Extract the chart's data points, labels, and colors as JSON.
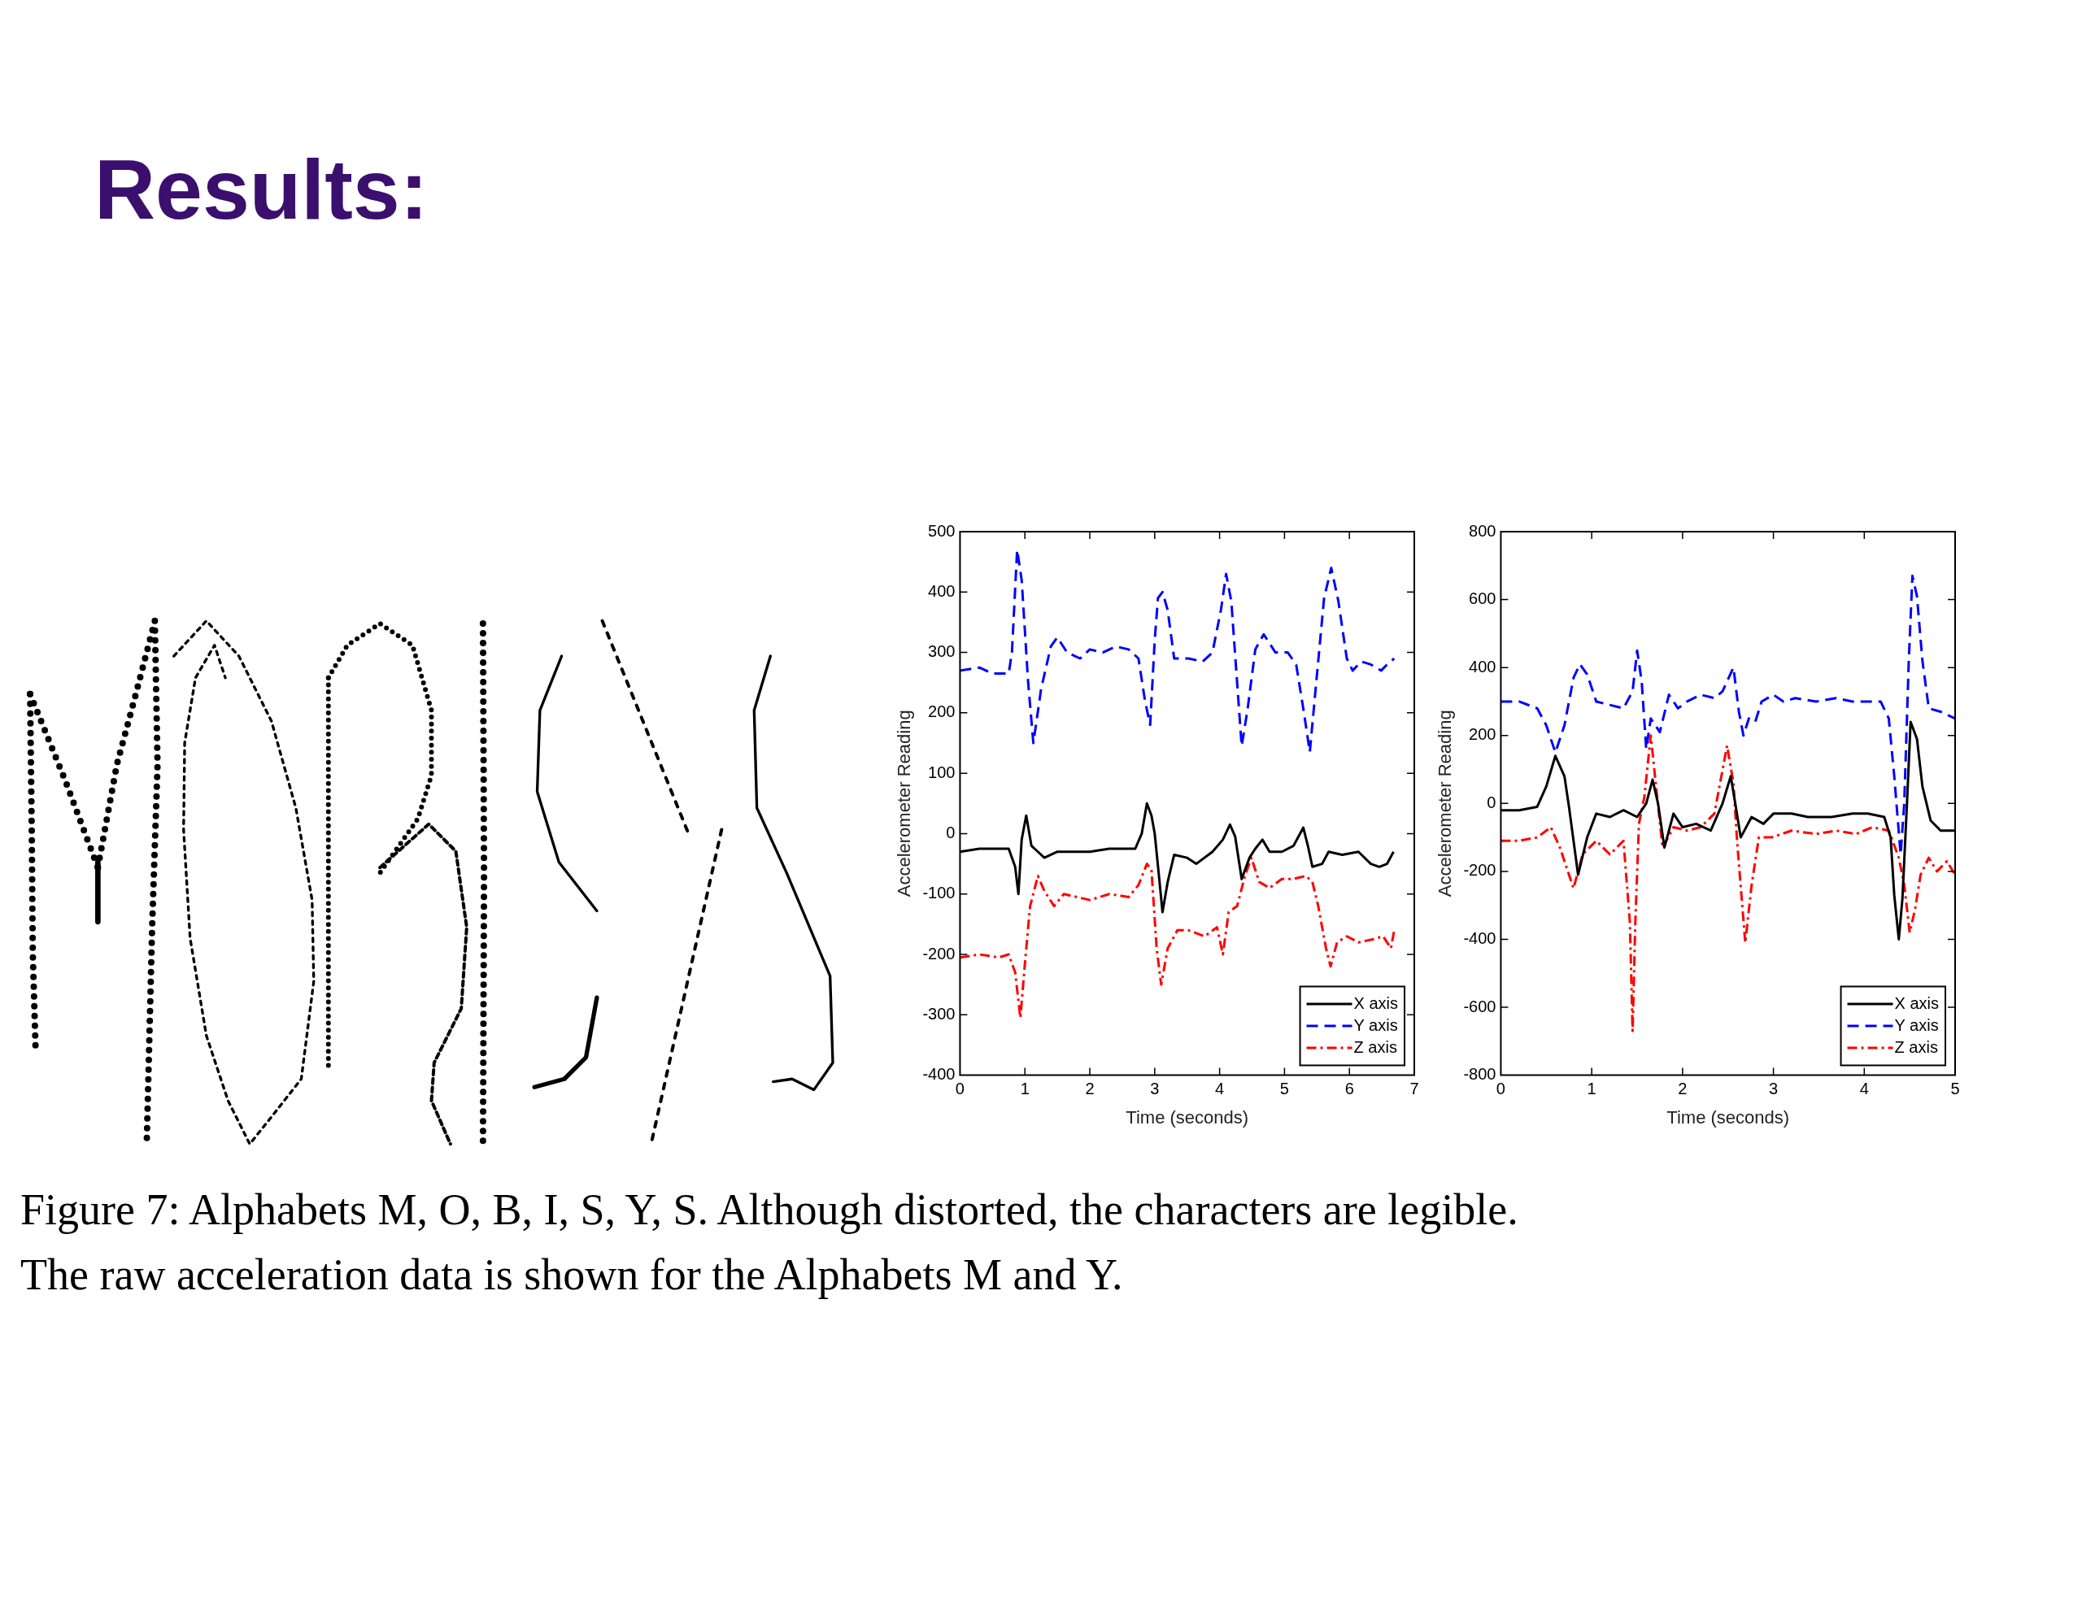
{
  "chart_data": [
    {
      "type": "other",
      "title": "Results:",
      "annotations": [
        "Figure 7: Alphabets M, O, B, I, S, Y, S. Although distorted, the characters are legible.",
        "The raw acceleration data is shown for the Alphabets M and Y."
      ]
    },
    {
      "type": "line",
      "xlabel": "Time (seconds)",
      "ylabel": "Accelerometer Reading",
      "xlim": [
        0,
        7
      ],
      "xticks": [
        0,
        1,
        2,
        3,
        4,
        5,
        6,
        7
      ],
      "ylim": [
        -400,
        500
      ],
      "yticks": [
        -400,
        -300,
        -200,
        -100,
        0,
        100,
        200,
        300,
        400,
        500
      ],
      "legend": "bottom right",
      "series": [
        {
          "name": "X axis",
          "color": "#000000",
          "line_style": "solid",
          "x": [
            0,
            0.3,
            0.5,
            0.75,
            0.85,
            0.9,
            0.95,
            1.02,
            1.1,
            1.2,
            1.3,
            1.5,
            1.7,
            2.0,
            2.3,
            2.5,
            2.7,
            2.8,
            2.88,
            2.95,
            3.0,
            3.07,
            3.12,
            3.2,
            3.3,
            3.5,
            3.64,
            3.89,
            4.05,
            4.16,
            4.24,
            4.34,
            4.46,
            4.55,
            4.66,
            4.77,
            4.96,
            5.14,
            5.29,
            5.36,
            5.43,
            5.58,
            5.68,
            5.89,
            6.14,
            6.33,
            6.46,
            6.58,
            6.68
          ],
          "values": [
            -30,
            -25,
            -25,
            -25,
            -55,
            -100,
            -10,
            30,
            -20,
            -30,
            -40,
            -30,
            -30,
            -30,
            -25,
            -25,
            -25,
            0,
            50,
            30,
            0,
            -75,
            -130,
            -80,
            -35,
            -40,
            -50,
            -30,
            -10,
            15,
            -5,
            -75,
            -40,
            -25,
            -10,
            -30,
            -30,
            -20,
            10,
            -20,
            -55,
            -50,
            -30,
            -35,
            -30,
            -50,
            -55,
            -50,
            -30
          ]
        },
        {
          "name": "Y axis",
          "color": "#0000ff",
          "line_style": "dashed",
          "x": [
            0,
            0.3,
            0.5,
            0.75,
            0.8,
            0.88,
            0.95,
            1.05,
            1.13,
            1.25,
            1.4,
            1.5,
            1.65,
            1.85,
            2.0,
            2.2,
            2.4,
            2.6,
            2.75,
            2.85,
            2.93,
            3.0,
            3.05,
            3.12,
            3.2,
            3.3,
            3.52,
            3.74,
            3.89,
            4.02,
            4.1,
            4.18,
            4.26,
            4.34,
            4.43,
            4.55,
            4.68,
            4.86,
            5.05,
            5.18,
            5.3,
            5.39,
            5.48,
            5.61,
            5.72,
            5.83,
            5.96,
            6.05,
            6.18,
            6.33,
            6.49,
            6.58,
            6.69
          ],
          "values": [
            270,
            275,
            265,
            265,
            300,
            470,
            420,
            250,
            150,
            240,
            310,
            325,
            300,
            290,
            305,
            300,
            310,
            305,
            290,
            220,
            180,
            320,
            390,
            400,
            370,
            290,
            290,
            285,
            300,
            370,
            430,
            385,
            265,
            145,
            205,
            305,
            330,
            300,
            300,
            280,
            200,
            135,
            240,
            390,
            440,
            385,
            290,
            270,
            285,
            280,
            270,
            280,
            290
          ]
        },
        {
          "name": "Z axis",
          "color": "#ff0000",
          "line_style": "dotted",
          "x": [
            0,
            0.3,
            0.6,
            0.75,
            0.85,
            0.93,
            1.0,
            1.08,
            1.2,
            1.3,
            1.45,
            1.6,
            1.8,
            2.0,
            2.3,
            2.6,
            2.75,
            2.88,
            2.95,
            3.03,
            3.1,
            3.2,
            3.35,
            3.52,
            3.77,
            3.96,
            4.05,
            4.14,
            4.27,
            4.39,
            4.49,
            4.61,
            4.77,
            4.96,
            5.14,
            5.33,
            5.43,
            5.52,
            5.64,
            5.71,
            5.81,
            5.96,
            6.14,
            6.36,
            6.52,
            6.64,
            6.69
          ],
          "values": [
            -205,
            -200,
            -205,
            -200,
            -230,
            -305,
            -215,
            -120,
            -70,
            -95,
            -120,
            -100,
            -105,
            -110,
            -100,
            -105,
            -85,
            -50,
            -60,
            -190,
            -250,
            -190,
            -160,
            -160,
            -170,
            -155,
            -200,
            -130,
            -120,
            -70,
            -40,
            -80,
            -90,
            -75,
            -75,
            -70,
            -80,
            -120,
            -190,
            -220,
            -180,
            -170,
            -180,
            -175,
            -170,
            -190,
            -160
          ]
        }
      ]
    },
    {
      "type": "line",
      "xlabel": "Time (seconds)",
      "ylabel": "Accelerometer Reading",
      "xlim": [
        0,
        5
      ],
      "xticks": [
        0,
        1,
        2,
        3,
        4,
        5
      ],
      "ylim": [
        -800,
        800
      ],
      "yticks": [
        -800,
        -600,
        -400,
        -200,
        0,
        200,
        400,
        600,
        800
      ],
      "legend": "bottom right",
      "series": [
        {
          "name": "X axis",
          "color": "#000000",
          "line_style": "solid",
          "x": [
            0,
            0.2,
            0.4,
            0.5,
            0.6,
            0.7,
            0.75,
            0.85,
            0.95,
            1.05,
            1.2,
            1.35,
            1.5,
            1.6,
            1.67,
            1.73,
            1.8,
            1.9,
            2.0,
            2.15,
            2.31,
            2.44,
            2.53,
            2.58,
            2.64,
            2.76,
            2.89,
            3.0,
            3.2,
            3.38,
            3.64,
            3.87,
            4.04,
            4.22,
            4.29,
            4.33,
            4.38,
            4.42,
            4.47,
            4.51,
            4.58,
            4.64,
            4.73,
            4.84,
            5.0
          ],
          "values": [
            -20,
            -20,
            -10,
            50,
            140,
            80,
            -10,
            -210,
            -100,
            -30,
            -40,
            -20,
            -40,
            0,
            70,
            0,
            -130,
            -30,
            -70,
            -60,
            -80,
            0,
            80,
            0,
            -100,
            -40,
            -60,
            -30,
            -30,
            -40,
            -40,
            -30,
            -30,
            -40,
            -100,
            -270,
            -400,
            -280,
            0,
            240,
            190,
            50,
            -50,
            -80,
            -80
          ]
        },
        {
          "name": "Y axis",
          "color": "#0000ff",
          "line_style": "dashed",
          "x": [
            0,
            0.2,
            0.4,
            0.5,
            0.6,
            0.7,
            0.8,
            0.87,
            0.95,
            1.05,
            1.2,
            1.35,
            1.45,
            1.5,
            1.55,
            1.6,
            1.65,
            1.75,
            1.85,
            1.95,
            2.05,
            2.2,
            2.35,
            2.44,
            2.56,
            2.62,
            2.67,
            2.73,
            2.8,
            2.87,
            3.0,
            3.11,
            3.24,
            3.47,
            3.69,
            3.87,
            4.02,
            4.18,
            4.27,
            4.33,
            4.4,
            4.44,
            4.49,
            4.53,
            4.58,
            4.64,
            4.71,
            4.84,
            5.0
          ],
          "values": [
            300,
            300,
            280,
            230,
            150,
            230,
            370,
            410,
            380,
            300,
            290,
            280,
            330,
            450,
            360,
            160,
            250,
            210,
            320,
            280,
            300,
            320,
            310,
            330,
            400,
            270,
            200,
            250,
            240,
            300,
            320,
            300,
            310,
            300,
            310,
            300,
            300,
            300,
            250,
            80,
            -150,
            0,
            420,
            670,
            610,
            420,
            280,
            270,
            250
          ]
        },
        {
          "name": "Z axis",
          "color": "#ff0000",
          "line_style": "dotted",
          "x": [
            0,
            0.2,
            0.4,
            0.55,
            0.65,
            0.8,
            0.9,
            1.05,
            1.2,
            1.35,
            1.42,
            1.45,
            1.48,
            1.52,
            1.58,
            1.65,
            1.72,
            1.78,
            1.9,
            2.05,
            2.2,
            2.35,
            2.49,
            2.56,
            2.6,
            2.69,
            2.76,
            2.84,
            2.98,
            3.2,
            3.47,
            3.69,
            3.91,
            4.09,
            4.27,
            4.38,
            4.44,
            4.5,
            4.56,
            4.62,
            4.71,
            4.8,
            4.91,
            5.0
          ],
          "values": [
            -110,
            -110,
            -100,
            -70,
            -130,
            -250,
            -150,
            -110,
            -150,
            -110,
            -350,
            -670,
            -350,
            -60,
            20,
            200,
            20,
            -130,
            -70,
            -80,
            -70,
            -30,
            170,
            60,
            -110,
            -410,
            -240,
            -100,
            -100,
            -80,
            -90,
            -80,
            -90,
            -70,
            -80,
            -160,
            -240,
            -380,
            -310,
            -210,
            -160,
            -200,
            -170,
            -210
          ]
        }
      ]
    }
  ]
}
